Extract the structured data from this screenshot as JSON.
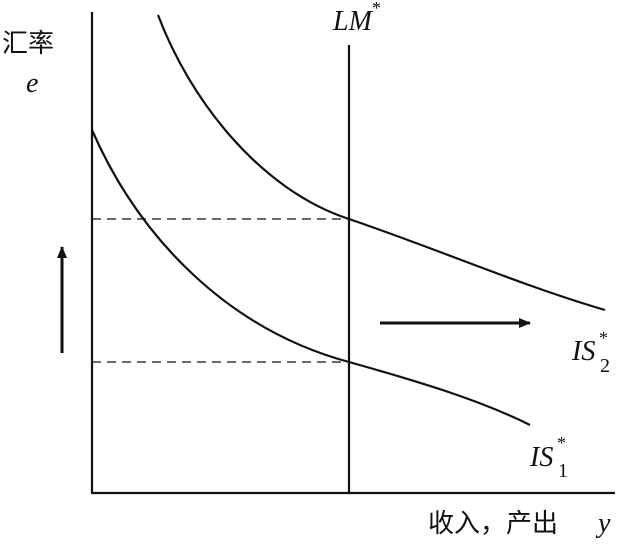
{
  "y_axis": {
    "label": "汇率",
    "symbol": "e"
  },
  "x_axis": {
    "label": "收入，产出",
    "symbol": "y"
  },
  "curves": {
    "lm": {
      "name": "LM",
      "sup": "*"
    },
    "is1": {
      "name": "IS",
      "sub": "1",
      "sup": "*"
    },
    "is2": {
      "name": "IS",
      "sub": "2",
      "sup": "*"
    }
  }
}
